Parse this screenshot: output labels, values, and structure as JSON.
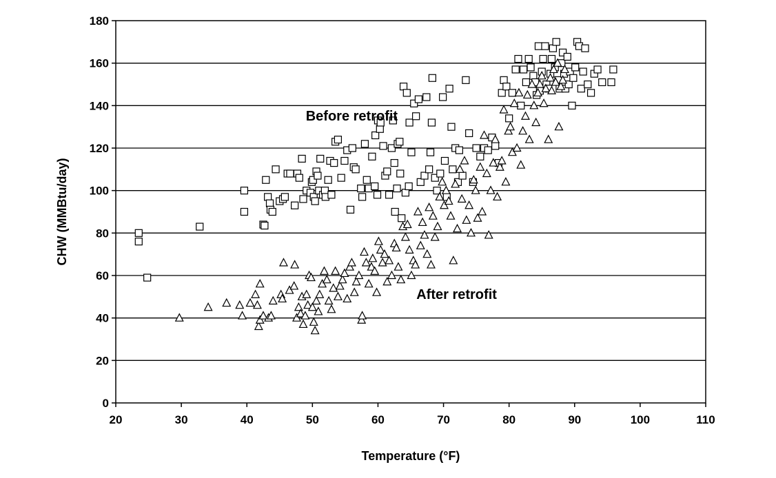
{
  "chart_data": {
    "type": "scatter",
    "title": "",
    "xlabel": "Temperature (°F)",
    "ylabel": "CHW (MMBtu/day)",
    "xlim": [
      20,
      110
    ],
    "ylim": [
      0,
      180
    ],
    "xticks": [
      "20",
      "30",
      "40",
      "50",
      "60",
      "70",
      "80",
      "90",
      "100",
      "110"
    ],
    "yticks": [
      "0",
      "20",
      "40",
      "60",
      "80",
      "100",
      "120",
      "140",
      "160",
      "180"
    ],
    "grid": "horizontal",
    "legend": "none",
    "annotations": [
      {
        "text": "Before retrofit",
        "x": 56,
        "y": 133
      },
      {
        "text": "After retrofit",
        "x": 72,
        "y": 49
      }
    ],
    "series": [
      {
        "marker": "square",
        "points": [
          [
            23.5,
            80
          ],
          [
            23.5,
            76
          ],
          [
            24.8,
            59
          ],
          [
            32.8,
            83
          ],
          [
            39.6,
            100
          ],
          [
            39.6,
            90
          ],
          [
            42.5,
            84
          ],
          [
            42.7,
            83.5
          ],
          [
            42.9,
            105
          ],
          [
            43.2,
            97
          ],
          [
            43.5,
            94
          ],
          [
            43.6,
            91
          ],
          [
            43.9,
            90
          ],
          [
            44.4,
            110
          ],
          [
            45,
            95
          ],
          [
            45.5,
            96
          ],
          [
            45.8,
            97
          ],
          [
            46.2,
            108
          ],
          [
            46.6,
            108
          ],
          [
            47.3,
            93
          ],
          [
            47.7,
            108
          ],
          [
            48,
            106
          ],
          [
            48.4,
            115
          ],
          [
            48.6,
            96
          ],
          [
            49.1,
            100
          ],
          [
            49.7,
            99
          ],
          [
            49.9,
            104
          ],
          [
            50.1,
            105
          ],
          [
            50.2,
            97
          ],
          [
            50.4,
            95
          ],
          [
            50.6,
            109
          ],
          [
            50.8,
            107
          ],
          [
            51,
            100
          ],
          [
            51.2,
            115
          ],
          [
            51.6,
            98
          ],
          [
            51.9,
            100
          ],
          [
            52,
            97
          ],
          [
            52.4,
            105
          ],
          [
            52.7,
            114
          ],
          [
            52.9,
            98
          ],
          [
            53.3,
            113
          ],
          [
            53.5,
            123
          ],
          [
            53.9,
            124
          ],
          [
            54.4,
            106
          ],
          [
            54.9,
            114
          ],
          [
            55.3,
            119
          ],
          [
            55.8,
            91
          ],
          [
            56.1,
            120
          ],
          [
            56.3,
            111
          ],
          [
            56.6,
            110
          ],
          [
            57.4,
            101
          ],
          [
            57.6,
            97
          ],
          [
            58,
            122
          ],
          [
            58.3,
            105
          ],
          [
            58.6,
            101
          ],
          [
            59.1,
            116
          ],
          [
            59.5,
            102
          ],
          [
            59.6,
            126
          ],
          [
            59.9,
            98
          ],
          [
            60,
            133
          ],
          [
            60.3,
            129
          ],
          [
            60.4,
            132
          ],
          [
            60.8,
            121
          ],
          [
            61.1,
            107
          ],
          [
            61.4,
            109
          ],
          [
            61.7,
            98
          ],
          [
            62.1,
            120
          ],
          [
            62.3,
            133
          ],
          [
            62.5,
            113
          ],
          [
            62.6,
            90
          ],
          [
            62.9,
            101
          ],
          [
            63,
            122
          ],
          [
            63.3,
            123
          ],
          [
            63.4,
            108
          ],
          [
            63.6,
            87
          ],
          [
            63.9,
            149
          ],
          [
            64.2,
            99
          ],
          [
            64.4,
            146
          ],
          [
            64.7,
            102
          ],
          [
            64.8,
            132
          ],
          [
            65.1,
            118
          ],
          [
            65.5,
            141
          ],
          [
            65.8,
            135
          ],
          [
            66.2,
            143
          ],
          [
            66.5,
            104
          ],
          [
            67.1,
            107
          ],
          [
            67.4,
            144
          ],
          [
            67.8,
            110
          ],
          [
            68,
            118
          ],
          [
            68.2,
            132
          ],
          [
            68.3,
            153
          ],
          [
            68.7,
            106
          ],
          [
            69,
            100
          ],
          [
            69.5,
            108
          ],
          [
            69.9,
            144
          ],
          [
            70.2,
            114
          ],
          [
            70.5,
            97
          ],
          [
            70.9,
            148
          ],
          [
            71.2,
            130
          ],
          [
            71.4,
            110
          ],
          [
            71.8,
            120
          ],
          [
            72.2,
            104
          ],
          [
            72.4,
            119
          ],
          [
            72.9,
            107
          ],
          [
            73.4,
            152
          ],
          [
            73.9,
            127
          ],
          [
            74.5,
            104
          ],
          [
            75,
            120
          ],
          [
            75.6,
            116
          ],
          [
            76.2,
            120
          ],
          [
            76.8,
            119
          ],
          [
            77.4,
            125
          ],
          [
            77.9,
            121
          ],
          [
            78.4,
            113
          ],
          [
            78.9,
            146
          ],
          [
            79.2,
            152
          ],
          [
            79.6,
            149
          ],
          [
            80,
            134
          ],
          [
            80.5,
            146
          ],
          [
            81,
            157
          ],
          [
            81.4,
            162
          ],
          [
            81.8,
            140
          ],
          [
            82.2,
            157
          ],
          [
            82.6,
            151
          ],
          [
            83,
            162
          ],
          [
            83.3,
            158
          ],
          [
            83.7,
            154
          ],
          [
            84,
            151
          ],
          [
            84.2,
            145
          ],
          [
            84.5,
            168
          ],
          [
            84.7,
            147
          ],
          [
            85,
            156
          ],
          [
            85.2,
            162
          ],
          [
            85.5,
            168
          ],
          [
            85.7,
            150
          ],
          [
            86,
            148
          ],
          [
            86.3,
            155
          ],
          [
            86.5,
            162
          ],
          [
            86.7,
            167
          ],
          [
            87,
            158
          ],
          [
            87.2,
            170
          ],
          [
            87.5,
            152
          ],
          [
            87.7,
            148
          ],
          [
            88,
            160
          ],
          [
            88.2,
            165
          ],
          [
            88.4,
            155
          ],
          [
            88.6,
            148
          ],
          [
            88.9,
            163
          ],
          [
            89.1,
            150
          ],
          [
            89.3,
            156
          ],
          [
            89.6,
            140
          ],
          [
            89.8,
            153
          ],
          [
            90.1,
            158
          ],
          [
            90.4,
            170
          ],
          [
            90.7,
            168
          ],
          [
            91,
            148
          ],
          [
            91.3,
            156
          ],
          [
            91.6,
            167
          ],
          [
            92,
            150
          ],
          [
            92.5,
            146
          ],
          [
            93,
            155
          ],
          [
            93.5,
            157
          ],
          [
            94.2,
            151
          ],
          [
            95.6,
            151
          ],
          [
            95.9,
            157
          ]
        ]
      },
      {
        "marker": "triangle",
        "points": [
          [
            29.7,
            40
          ],
          [
            34.1,
            45
          ],
          [
            36.9,
            47
          ],
          [
            38.9,
            46
          ],
          [
            39.3,
            41
          ],
          [
            40.5,
            47
          ],
          [
            41.3,
            51
          ],
          [
            41.6,
            46
          ],
          [
            41.8,
            36
          ],
          [
            42,
            39
          ],
          [
            42,
            56
          ],
          [
            42.5,
            41
          ],
          [
            43.3,
            40
          ],
          [
            43.7,
            41
          ],
          [
            44,
            48
          ],
          [
            45.2,
            51
          ],
          [
            45.4,
            49
          ],
          [
            45.6,
            66
          ],
          [
            46.5,
            53
          ],
          [
            47.2,
            55
          ],
          [
            47.3,
            65
          ],
          [
            47.6,
            40
          ],
          [
            47.9,
            45
          ],
          [
            48.2,
            42
          ],
          [
            48.4,
            50
          ],
          [
            48.6,
            37
          ],
          [
            48.9,
            41
          ],
          [
            49.1,
            51
          ],
          [
            49.3,
            46
          ],
          [
            49.5,
            60
          ],
          [
            49.8,
            59
          ],
          [
            50,
            45
          ],
          [
            50.2,
            38
          ],
          [
            50.4,
            34
          ],
          [
            50.6,
            48
          ],
          [
            50.9,
            43
          ],
          [
            51.1,
            51
          ],
          [
            51.5,
            56
          ],
          [
            51.8,
            62
          ],
          [
            52.2,
            58
          ],
          [
            52.5,
            48
          ],
          [
            52.9,
            44
          ],
          [
            53.2,
            54
          ],
          [
            53.5,
            62
          ],
          [
            53.9,
            50
          ],
          [
            54.2,
            55
          ],
          [
            54.6,
            58
          ],
          [
            54.9,
            61
          ],
          [
            55.3,
            49
          ],
          [
            55.7,
            64
          ],
          [
            56,
            66
          ],
          [
            56.4,
            52
          ],
          [
            56.7,
            57
          ],
          [
            57.1,
            60
          ],
          [
            57.5,
            39
          ],
          [
            57.6,
            41
          ],
          [
            57.9,
            71
          ],
          [
            58.2,
            66
          ],
          [
            58.6,
            56
          ],
          [
            59,
            64
          ],
          [
            59.2,
            68
          ],
          [
            59.5,
            62
          ],
          [
            59.8,
            52
          ],
          [
            60.1,
            76
          ],
          [
            60.4,
            72
          ],
          [
            60.7,
            66
          ],
          [
            61,
            70
          ],
          [
            61.4,
            57
          ],
          [
            61.7,
            67
          ],
          [
            62.1,
            60
          ],
          [
            62.5,
            75
          ],
          [
            62.8,
            73
          ],
          [
            63.1,
            64
          ],
          [
            63.5,
            58
          ],
          [
            63.8,
            83
          ],
          [
            64.2,
            78
          ],
          [
            64.5,
            84
          ],
          [
            64.8,
            72
          ],
          [
            65.1,
            60
          ],
          [
            65.4,
            67
          ],
          [
            65.7,
            65
          ],
          [
            66.1,
            90
          ],
          [
            66.5,
            74
          ],
          [
            66.8,
            85
          ],
          [
            67.1,
            79
          ],
          [
            67.5,
            70
          ],
          [
            67.8,
            92
          ],
          [
            68.1,
            65
          ],
          [
            68.4,
            88
          ],
          [
            68.7,
            78
          ],
          [
            69.1,
            83
          ],
          [
            69.4,
            97
          ],
          [
            69.8,
            104
          ],
          [
            70.1,
            93
          ],
          [
            70.4,
            100
          ],
          [
            70.8,
            95
          ],
          [
            71.1,
            88
          ],
          [
            71.5,
            67
          ],
          [
            71.8,
            103
          ],
          [
            72.1,
            82
          ],
          [
            72.5,
            110
          ],
          [
            72.8,
            96
          ],
          [
            73.2,
            114
          ],
          [
            73.5,
            86
          ],
          [
            73.9,
            93
          ],
          [
            74.2,
            80
          ],
          [
            74.6,
            105
          ],
          [
            74.9,
            100
          ],
          [
            75.2,
            87
          ],
          [
            75.6,
            111
          ],
          [
            75.9,
            90
          ],
          [
            76.2,
            126
          ],
          [
            76.6,
            108
          ],
          [
            76.9,
            79
          ],
          [
            77.2,
            100
          ],
          [
            77.6,
            113
          ],
          [
            77.9,
            124
          ],
          [
            78.2,
            97
          ],
          [
            78.6,
            111
          ],
          [
            78.9,
            114
          ],
          [
            79.2,
            138
          ],
          [
            79.5,
            104
          ],
          [
            79.9,
            128
          ],
          [
            80.2,
            130
          ],
          [
            80.5,
            118
          ],
          [
            80.8,
            141
          ],
          [
            81.2,
            120
          ],
          [
            81.5,
            146
          ],
          [
            81.8,
            112
          ],
          [
            82.1,
            128
          ],
          [
            82.5,
            135
          ],
          [
            82.8,
            145
          ],
          [
            83.1,
            124
          ],
          [
            83.5,
            150
          ],
          [
            83.8,
            140
          ],
          [
            84.1,
            132
          ],
          [
            84.4,
            146
          ],
          [
            84.7,
            150
          ],
          [
            85,
            154
          ],
          [
            85.3,
            141
          ],
          [
            85.6,
            148
          ],
          [
            86,
            124
          ],
          [
            86.3,
            153
          ],
          [
            86.5,
            147
          ],
          [
            86.8,
            157
          ],
          [
            87.1,
            151
          ],
          [
            87.4,
            160
          ],
          [
            87.6,
            130
          ],
          [
            87.9,
            149
          ],
          [
            88.2,
            152
          ],
          [
            88.5,
            157
          ]
        ]
      }
    ]
  }
}
